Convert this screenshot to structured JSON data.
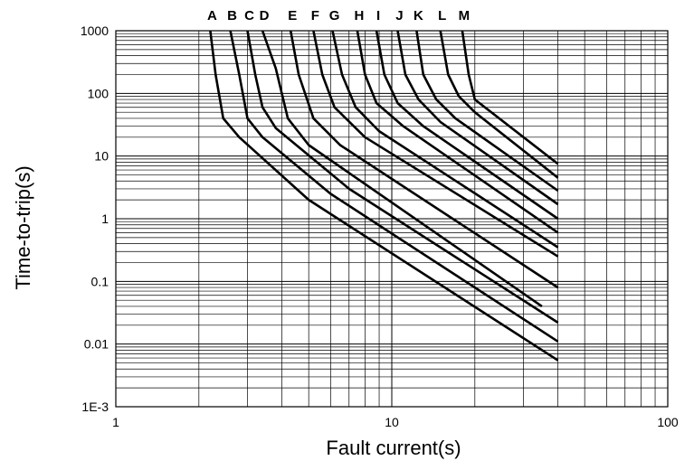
{
  "chart_data": {
    "type": "line",
    "xlabel": "Fault current(s)",
    "ylabel": "Time-to-trip(s)",
    "xscale": "log",
    "yscale": "log",
    "xlim": [
      1,
      100
    ],
    "ylim": [
      0.001,
      1000
    ],
    "grid": true,
    "legend": "none",
    "x_tick_labels": [
      {
        "value": 1,
        "label": "1"
      },
      {
        "value": 10,
        "label": "10"
      },
      {
        "value": 100,
        "label": "100"
      }
    ],
    "y_tick_labels": [
      {
        "value": 1000,
        "label": "1000"
      },
      {
        "value": 100,
        "label": "100"
      },
      {
        "value": 10,
        "label": "10"
      },
      {
        "value": 1,
        "label": "1"
      },
      {
        "value": 0.1,
        "label": "0.1"
      },
      {
        "value": 0.01,
        "label": "0.01"
      },
      {
        "value": 0.001,
        "label": "1E-3"
      }
    ],
    "series": [
      {
        "name": "A",
        "points": [
          [
            2.2,
            1000
          ],
          [
            2.3,
            200
          ],
          [
            2.45,
            40
          ],
          [
            2.8,
            20
          ],
          [
            5.0,
            2.0
          ],
          [
            40,
            0.0055
          ]
        ]
      },
      {
        "name": "B",
        "points": [
          [
            2.6,
            1000
          ],
          [
            2.8,
            200
          ],
          [
            3.0,
            40
          ],
          [
            3.4,
            20
          ],
          [
            6.0,
            2.5
          ],
          [
            40,
            0.011
          ]
        ]
      },
      {
        "name": "C",
        "points": [
          [
            3.0,
            1000
          ],
          [
            3.2,
            200
          ],
          [
            3.4,
            60
          ],
          [
            3.8,
            28
          ],
          [
            7.0,
            3.0
          ],
          [
            40,
            0.022
          ]
        ]
      },
      {
        "name": "D",
        "points": [
          [
            3.4,
            1000
          ],
          [
            3.8,
            250
          ],
          [
            4.2,
            40
          ],
          [
            5.0,
            15
          ],
          [
            35,
            0.04
          ]
        ]
      },
      {
        "name": "E",
        "points": [
          [
            4.3,
            1000
          ],
          [
            4.6,
            200
          ],
          [
            5.2,
            40
          ],
          [
            6.5,
            15
          ],
          [
            40,
            0.08
          ]
        ]
      },
      {
        "name": "F",
        "points": [
          [
            5.2,
            1000
          ],
          [
            5.6,
            200
          ],
          [
            6.2,
            60
          ],
          [
            8.0,
            20
          ],
          [
            40,
            0.25
          ]
        ]
      },
      {
        "name": "G",
        "points": [
          [
            6.1,
            1000
          ],
          [
            6.6,
            200
          ],
          [
            7.4,
            60
          ],
          [
            9.0,
            25
          ],
          [
            40,
            0.35
          ]
        ]
      },
      {
        "name": "H",
        "points": [
          [
            7.5,
            1000
          ],
          [
            8.0,
            200
          ],
          [
            8.8,
            70
          ],
          [
            11,
            30
          ],
          [
            40,
            0.6
          ]
        ]
      },
      {
        "name": "I",
        "points": [
          [
            8.8,
            1000
          ],
          [
            9.4,
            200
          ],
          [
            10.5,
            70
          ],
          [
            13,
            30
          ],
          [
            40,
            1.0
          ]
        ]
      },
      {
        "name": "J",
        "points": [
          [
            10.5,
            1000
          ],
          [
            11.2,
            200
          ],
          [
            12.5,
            80
          ],
          [
            15,
            35
          ],
          [
            40,
            1.7
          ]
        ]
      },
      {
        "name": "K",
        "points": [
          [
            12.3,
            1000
          ],
          [
            13,
            200
          ],
          [
            14.5,
            80
          ],
          [
            17,
            40
          ],
          [
            40,
            2.8
          ]
        ]
      },
      {
        "name": "L",
        "points": [
          [
            15,
            1000
          ],
          [
            16,
            200
          ],
          [
            17.5,
            90
          ],
          [
            20,
            50
          ],
          [
            40,
            4.5
          ]
        ]
      },
      {
        "name": "M",
        "points": [
          [
            18,
            1000
          ],
          [
            19,
            200
          ],
          [
            20,
            80
          ],
          [
            40,
            7.5
          ]
        ]
      }
    ]
  }
}
